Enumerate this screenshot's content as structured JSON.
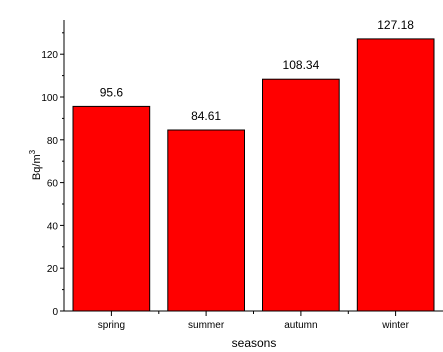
{
  "chart_data": {
    "type": "bar",
    "categories": [
      "spring",
      "summer",
      "autumn",
      "winter"
    ],
    "values": [
      95.6,
      84.61,
      108.34,
      127.18
    ],
    "value_labels": [
      "95.6",
      "84.61",
      "108.34",
      "127.18"
    ],
    "title": "",
    "xlabel": "seasons",
    "ylabel": "Bq/m",
    "ylabel_superscript": "3",
    "ylim": [
      0,
      136
    ],
    "yticks": [
      "0",
      "20",
      "40",
      "60",
      "80",
      "100",
      "120"
    ],
    "grid": false,
    "bar_color": "#ff0000",
    "bar_edge_color": "#000000"
  }
}
